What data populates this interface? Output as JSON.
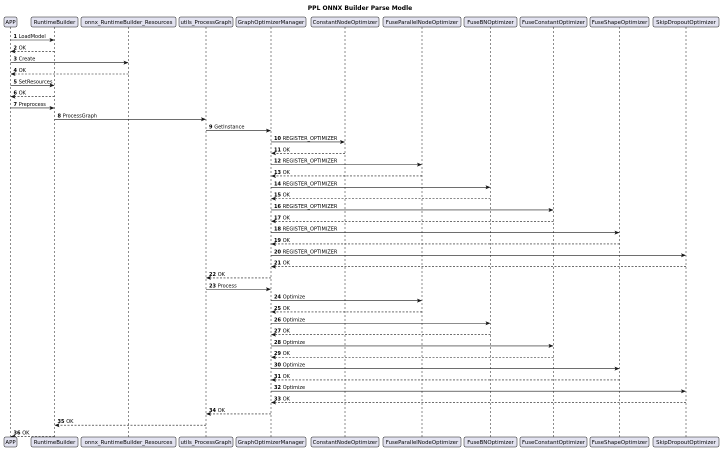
{
  "diagram": {
    "type": "sequence",
    "title": "PPL ONNX Builder Parse Modle",
    "participants": [
      "APP",
      "RuntimeBuilder",
      "onnx_RuntimeBuilder_Resources",
      "utils_ProcessGraph",
      "GraphOptimizerManager",
      "ConstantNodeOptimizer",
      "FuseParallelNodeOptimizer",
      "FuseBNOptimizer",
      "FuseConstantOptimizer",
      "FuseShapeOptimizer",
      "SkipDropoutOptimizer"
    ],
    "messages": [
      {
        "n": "1",
        "from": 0,
        "to": 1,
        "label": "LoadModel",
        "ret": false
      },
      {
        "n": "2",
        "from": 1,
        "to": 0,
        "label": "OK",
        "ret": true
      },
      {
        "n": "3",
        "from": 0,
        "to": 2,
        "label": "Create",
        "ret": false
      },
      {
        "n": "4",
        "from": 2,
        "to": 0,
        "label": "OK",
        "ret": true
      },
      {
        "n": "5",
        "from": 0,
        "to": 1,
        "label": "SetResources",
        "ret": false
      },
      {
        "n": "6",
        "from": 1,
        "to": 0,
        "label": "OK",
        "ret": true
      },
      {
        "n": "7",
        "from": 0,
        "to": 1,
        "label": "Preprocess",
        "ret": false
      },
      {
        "n": "8",
        "from": 1,
        "to": 3,
        "label": "ProcessGraph",
        "ret": false
      },
      {
        "n": "9",
        "from": 3,
        "to": 4,
        "label": "GetInstance",
        "ret": false
      },
      {
        "n": "10",
        "from": 4,
        "to": 5,
        "label": "REGISTER_OPTIMIZER",
        "ret": false
      },
      {
        "n": "11",
        "from": 5,
        "to": 4,
        "label": "OK",
        "ret": true
      },
      {
        "n": "12",
        "from": 4,
        "to": 6,
        "label": "REGISTER_OPTIMIZER",
        "ret": false
      },
      {
        "n": "13",
        "from": 6,
        "to": 4,
        "label": "OK",
        "ret": true
      },
      {
        "n": "14",
        "from": 4,
        "to": 7,
        "label": "REGISTER_OPTIMIZER",
        "ret": false
      },
      {
        "n": "15",
        "from": 7,
        "to": 4,
        "label": "OK",
        "ret": true
      },
      {
        "n": "16",
        "from": 4,
        "to": 8,
        "label": "REGISTER_OPTIMIZER",
        "ret": false
      },
      {
        "n": "17",
        "from": 8,
        "to": 4,
        "label": "OK",
        "ret": true
      },
      {
        "n": "18",
        "from": 4,
        "to": 9,
        "label": "REGISTER_OPTIMIZER",
        "ret": false
      },
      {
        "n": "19",
        "from": 9,
        "to": 4,
        "label": "OK",
        "ret": true
      },
      {
        "n": "20",
        "from": 4,
        "to": 10,
        "label": "REGISTER_OPTIMIZER",
        "ret": false
      },
      {
        "n": "21",
        "from": 10,
        "to": 4,
        "label": "OK",
        "ret": true
      },
      {
        "n": "22",
        "from": 4,
        "to": 3,
        "label": "OK",
        "ret": true
      },
      {
        "n": "23",
        "from": 3,
        "to": 4,
        "label": "Process",
        "ret": false
      },
      {
        "n": "24",
        "from": 4,
        "to": 6,
        "label": "Optimize",
        "ret": false
      },
      {
        "n": "25",
        "from": 6,
        "to": 4,
        "label": "OK",
        "ret": true
      },
      {
        "n": "26",
        "from": 4,
        "to": 7,
        "label": "Optimize",
        "ret": false
      },
      {
        "n": "27",
        "from": 7,
        "to": 4,
        "label": "OK",
        "ret": true
      },
      {
        "n": "28",
        "from": 4,
        "to": 8,
        "label": "Optimize",
        "ret": false
      },
      {
        "n": "29",
        "from": 8,
        "to": 4,
        "label": "OK",
        "ret": true
      },
      {
        "n": "30",
        "from": 4,
        "to": 9,
        "label": "Optimize",
        "ret": false
      },
      {
        "n": "31",
        "from": 9,
        "to": 4,
        "label": "OK",
        "ret": true
      },
      {
        "n": "32",
        "from": 4,
        "to": 10,
        "label": "Optimize",
        "ret": false
      },
      {
        "n": "33",
        "from": 10,
        "to": 4,
        "label": "OK",
        "ret": true
      },
      {
        "n": "34",
        "from": 4,
        "to": 3,
        "label": "OK",
        "ret": true
      },
      {
        "n": "35",
        "from": 3,
        "to": 1,
        "label": "OK",
        "ret": true
      },
      {
        "n": "36",
        "from": 1,
        "to": 0,
        "label": "OK",
        "ret": true
      }
    ],
    "colors": {
      "participant_fill": "#e2e2f0",
      "line": "#181818",
      "text": "#000000",
      "background": "#ffffff"
    }
  }
}
